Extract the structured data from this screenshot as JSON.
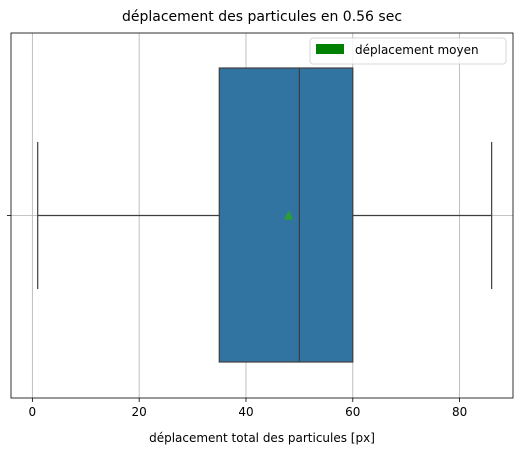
{
  "chart_data": {
    "type": "boxplot",
    "title": "déplacement des particules en 0.56 sec",
    "xlabel": "déplacement total des particules [px]",
    "ylabel": "",
    "orientation": "horizontal",
    "xlim": [
      -4,
      90
    ],
    "xticks": [
      0,
      20,
      40,
      60,
      80
    ],
    "xtick_labels": [
      "0",
      "20",
      "40",
      "60",
      "80"
    ],
    "grid": true,
    "box": {
      "whisker_low": 1,
      "q1": 35,
      "median": 50,
      "q3": 60,
      "whisker_high": 86,
      "mean": 48
    },
    "legend": {
      "position": "top-right",
      "entries": [
        {
          "label": "déplacement moyen",
          "color": "#008000"
        }
      ]
    },
    "colors": {
      "box_fill": "#3274a1",
      "box_edge": "#3f3f3f",
      "mean_marker": "#2ca02c",
      "grid": "#b0b0b0"
    }
  }
}
